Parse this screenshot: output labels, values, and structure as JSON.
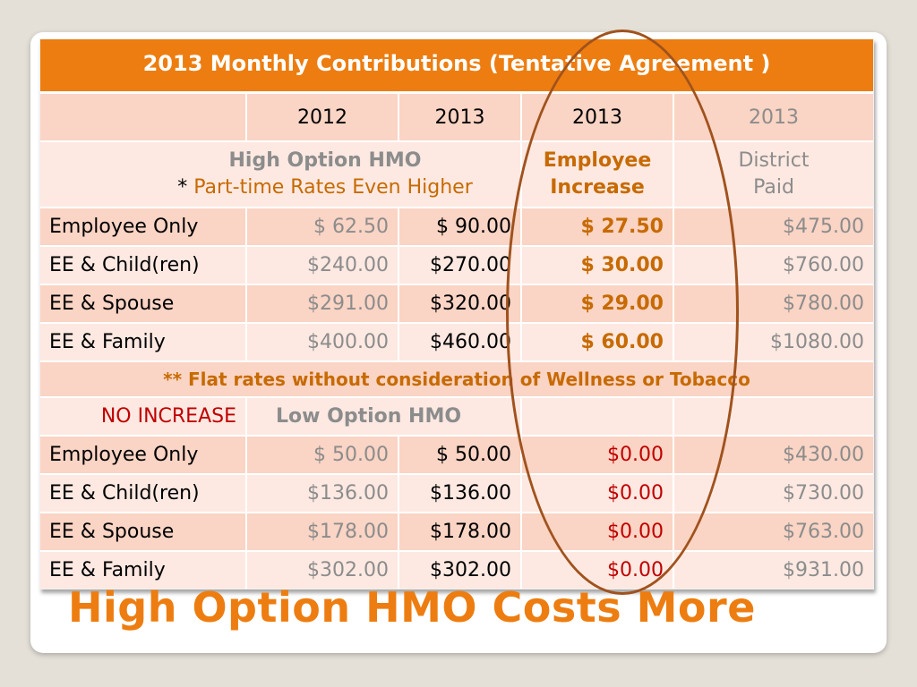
{
  "table_title": "2013 Monthly Contributions (Tentative Agreement )",
  "col_years": [
    "2012",
    "2013",
    "2013",
    "2013"
  ],
  "high_section": {
    "label": "High Option HMO",
    "note_star": "*",
    "note_text": "Part-time Rates Even Higher",
    "employee_increase_line1": "Employee",
    "employee_increase_line2": "Increase",
    "district_paid_line1": "District",
    "district_paid_line2": "Paid",
    "rows": [
      {
        "tier": "Employee Only",
        "y2012": "$ 62.50",
        "y2013": "$ 90.00",
        "increase": "$ 27.50",
        "district": "$475.00"
      },
      {
        "tier": "EE & Child(ren)",
        "y2012": "$240.00",
        "y2013": "$270.00",
        "increase": "$ 30.00",
        "district": "$760.00"
      },
      {
        "tier": "EE & Spouse",
        "y2012": "$291.00",
        "y2013": "$320.00",
        "increase": "$ 29.00",
        "district": "$780.00"
      },
      {
        "tier": "EE & Family",
        "y2012": "$400.00",
        "y2013": "$460.00",
        "increase": "$ 60.00",
        "district": "$1080.00"
      }
    ]
  },
  "flat_note": "** Flat rates without consideration of Wellness or Tobacco",
  "low_section": {
    "no_increase": "NO INCREASE",
    "label": "Low Option HMO",
    "rows": [
      {
        "tier": "Employee Only",
        "y2012": "$ 50.00",
        "y2013": "$ 50.00",
        "increase": "$0.00",
        "district": "$430.00"
      },
      {
        "tier": "EE & Child(ren)",
        "y2012": "$136.00",
        "y2013": "$136.00",
        "increase": "$0.00",
        "district": "$730.00"
      },
      {
        "tier": "EE & Spouse",
        "y2012": "$178.00",
        "y2013": "$178.00",
        "increase": "$0.00",
        "district": "$763.00"
      },
      {
        "tier": "EE & Family",
        "y2012": "$302.00",
        "y2013": "$302.00",
        "increase": "$0.00",
        "district": "$931.00"
      }
    ]
  },
  "slide_heading": "High Option HMO Costs More",
  "colors": {
    "accent": "#ed7d10",
    "row_dark": "#fad4c4",
    "row_light": "#fde9e2",
    "increase_text": "#c76a00",
    "red_text": "#c00000",
    "ellipse": "#a0521d"
  }
}
